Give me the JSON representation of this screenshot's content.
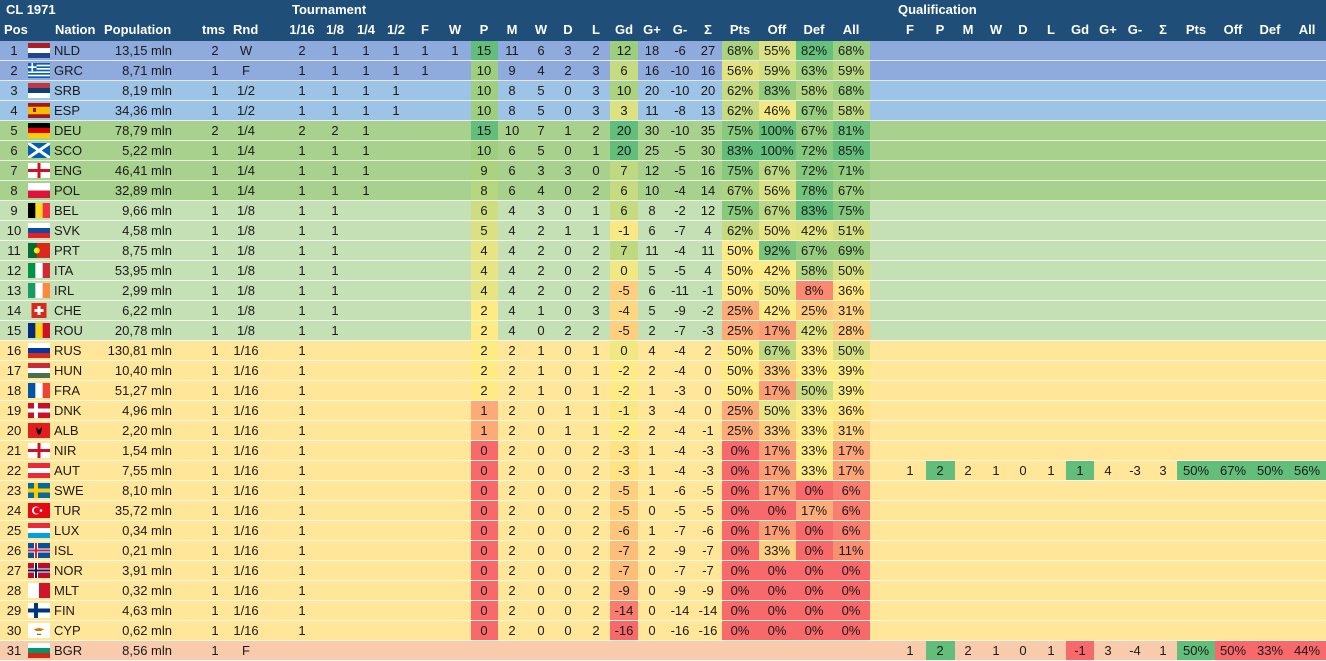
{
  "title": "CL 1971",
  "groups": {
    "tournament": "Tournament",
    "qualification": "Qualification"
  },
  "headers": {
    "pos": "Pos",
    "nation": "Nation",
    "population": "Population",
    "tms": "tms",
    "rnd": "Rnd",
    "rounds": [
      "1/16",
      "1/8",
      "1/4",
      "1/2",
      "F",
      "W"
    ],
    "stats": [
      "P",
      "M",
      "W",
      "D",
      "L",
      "Gd",
      "G+",
      "G-",
      "Σ",
      "Pts",
      "Off",
      "Def",
      "All"
    ],
    "qual": [
      "F",
      "P",
      "M",
      "W",
      "D",
      "L",
      "Gd",
      "G+",
      "G-",
      "Σ",
      "Pts",
      "Off",
      "Def",
      "All"
    ]
  },
  "colors": {
    "header": "#1f4e79",
    "tier_winner_final": "#8faadc",
    "tier_semi": "#9dc3e6",
    "tier_quarter": "#a9d18e",
    "tier_eighth": "#c5e0b4",
    "tier_sixteenth": "#ffe699",
    "tier_qualification": "#f8cbad",
    "scale_low": "#f8696b",
    "scale_mid": "#ffeb84",
    "scale_high": "#63be7b"
  },
  "rows": [
    {
      "pos": "1",
      "nation": "NLD",
      "population": "13,15 mln",
      "tms": "2",
      "rnd": "W",
      "tier": "tier_winner_final",
      "t": [
        "2",
        "1",
        "1",
        "1",
        "1",
        "1"
      ],
      "s": [
        "15",
        "11",
        "6",
        "3",
        "2",
        "12",
        "18",
        "-6",
        "27",
        "68%",
        "55%",
        "82%",
        "68%"
      ]
    },
    {
      "pos": "2",
      "nation": "GRC",
      "population": "8,71 mln",
      "tms": "1",
      "rnd": "F",
      "tier": "tier_winner_final",
      "t": [
        "1",
        "1",
        "1",
        "1",
        "1",
        ""
      ],
      "s": [
        "10",
        "9",
        "4",
        "2",
        "3",
        "6",
        "16",
        "-10",
        "16",
        "56%",
        "59%",
        "63%",
        "59%"
      ]
    },
    {
      "pos": "3",
      "nation": "SRB",
      "population": "8,19 mln",
      "tms": "1",
      "rnd": "1/2",
      "tier": "tier_semi",
      "t": [
        "1",
        "1",
        "1",
        "1",
        "",
        ""
      ],
      "s": [
        "10",
        "8",
        "5",
        "0",
        "3",
        "10",
        "20",
        "-10",
        "20",
        "62%",
        "83%",
        "58%",
        "68%"
      ]
    },
    {
      "pos": "4",
      "nation": "ESP",
      "population": "34,36 mln",
      "tms": "1",
      "rnd": "1/2",
      "tier": "tier_semi",
      "t": [
        "1",
        "1",
        "1",
        "1",
        "",
        ""
      ],
      "s": [
        "10",
        "8",
        "5",
        "0",
        "3",
        "3",
        "11",
        "-8",
        "13",
        "62%",
        "46%",
        "67%",
        "58%"
      ]
    },
    {
      "pos": "5",
      "nation": "DEU",
      "population": "78,79 mln",
      "tms": "2",
      "rnd": "1/4",
      "tier": "tier_quarter",
      "t": [
        "2",
        "2",
        "1",
        "",
        "",
        ""
      ],
      "s": [
        "15",
        "10",
        "7",
        "1",
        "2",
        "20",
        "30",
        "-10",
        "35",
        "75%",
        "100%",
        "67%",
        "81%"
      ]
    },
    {
      "pos": "6",
      "nation": "SCO",
      "population": "5,22 mln",
      "tms": "1",
      "rnd": "1/4",
      "tier": "tier_quarter",
      "t": [
        "1",
        "1",
        "1",
        "",
        "",
        ""
      ],
      "s": [
        "10",
        "6",
        "5",
        "0",
        "1",
        "20",
        "25",
        "-5",
        "30",
        "83%",
        "100%",
        "72%",
        "85%"
      ]
    },
    {
      "pos": "7",
      "nation": "ENG",
      "population": "46,41 mln",
      "tms": "1",
      "rnd": "1/4",
      "tier": "tier_quarter",
      "t": [
        "1",
        "1",
        "1",
        "",
        "",
        ""
      ],
      "s": [
        "9",
        "6",
        "3",
        "3",
        "0",
        "7",
        "12",
        "-5",
        "16",
        "75%",
        "67%",
        "72%",
        "71%"
      ]
    },
    {
      "pos": "8",
      "nation": "POL",
      "population": "32,89 mln",
      "tms": "1",
      "rnd": "1/4",
      "tier": "tier_quarter",
      "t": [
        "1",
        "1",
        "1",
        "",
        "",
        ""
      ],
      "s": [
        "8",
        "6",
        "4",
        "0",
        "2",
        "6",
        "10",
        "-4",
        "14",
        "67%",
        "56%",
        "78%",
        "67%"
      ]
    },
    {
      "pos": "9",
      "nation": "BEL",
      "population": "9,66 mln",
      "tms": "1",
      "rnd": "1/8",
      "tier": "tier_eighth",
      "t": [
        "1",
        "1",
        "",
        "",
        "",
        ""
      ],
      "s": [
        "6",
        "4",
        "3",
        "0",
        "1",
        "6",
        "8",
        "-2",
        "12",
        "75%",
        "67%",
        "83%",
        "75%"
      ]
    },
    {
      "pos": "10",
      "nation": "SVK",
      "population": "4,58 mln",
      "tms": "1",
      "rnd": "1/8",
      "tier": "tier_eighth",
      "t": [
        "1",
        "1",
        "",
        "",
        "",
        ""
      ],
      "s": [
        "5",
        "4",
        "2",
        "1",
        "1",
        "-1",
        "6",
        "-7",
        "4",
        "62%",
        "50%",
        "42%",
        "51%"
      ]
    },
    {
      "pos": "11",
      "nation": "PRT",
      "population": "8,75 mln",
      "tms": "1",
      "rnd": "1/8",
      "tier": "tier_eighth",
      "t": [
        "1",
        "1",
        "",
        "",
        "",
        ""
      ],
      "s": [
        "4",
        "4",
        "2",
        "0",
        "2",
        "7",
        "11",
        "-4",
        "11",
        "50%",
        "92%",
        "67%",
        "69%"
      ]
    },
    {
      "pos": "12",
      "nation": "ITA",
      "population": "53,95 mln",
      "tms": "1",
      "rnd": "1/8",
      "tier": "tier_eighth",
      "t": [
        "1",
        "1",
        "",
        "",
        "",
        ""
      ],
      "s": [
        "4",
        "4",
        "2",
        "0",
        "2",
        "0",
        "5",
        "-5",
        "4",
        "50%",
        "42%",
        "58%",
        "50%"
      ]
    },
    {
      "pos": "13",
      "nation": "IRL",
      "population": "2,99 mln",
      "tms": "1",
      "rnd": "1/8",
      "tier": "tier_eighth",
      "t": [
        "1",
        "1",
        "",
        "",
        "",
        ""
      ],
      "s": [
        "4",
        "4",
        "2",
        "0",
        "2",
        "-5",
        "6",
        "-11",
        "-1",
        "50%",
        "50%",
        "8%",
        "36%"
      ]
    },
    {
      "pos": "14",
      "nation": "CHE",
      "population": "6,22 mln",
      "tms": "1",
      "rnd": "1/8",
      "tier": "tier_eighth",
      "t": [
        "1",
        "1",
        "",
        "",
        "",
        ""
      ],
      "s": [
        "2",
        "4",
        "1",
        "0",
        "3",
        "-4",
        "5",
        "-9",
        "-2",
        "25%",
        "42%",
        "25%",
        "31%"
      ]
    },
    {
      "pos": "15",
      "nation": "ROU",
      "population": "20,78 mln",
      "tms": "1",
      "rnd": "1/8",
      "tier": "tier_eighth",
      "t": [
        "1",
        "1",
        "",
        "",
        "",
        ""
      ],
      "s": [
        "2",
        "4",
        "0",
        "2",
        "2",
        "-5",
        "2",
        "-7",
        "-3",
        "25%",
        "17%",
        "42%",
        "28%"
      ]
    },
    {
      "pos": "16",
      "nation": "RUS",
      "population": "130,81 mln",
      "tms": "1",
      "rnd": "1/16",
      "tier": "tier_sixteenth",
      "t": [
        "1",
        "",
        "",
        "",
        "",
        ""
      ],
      "s": [
        "2",
        "2",
        "1",
        "0",
        "1",
        "0",
        "4",
        "-4",
        "2",
        "50%",
        "67%",
        "33%",
        "50%"
      ]
    },
    {
      "pos": "17",
      "nation": "HUN",
      "population": "10,40 mln",
      "tms": "1",
      "rnd": "1/16",
      "tier": "tier_sixteenth",
      "t": [
        "1",
        "",
        "",
        "",
        "",
        ""
      ],
      "s": [
        "2",
        "2",
        "1",
        "0",
        "1",
        "-2",
        "2",
        "-4",
        "0",
        "50%",
        "33%",
        "33%",
        "39%"
      ]
    },
    {
      "pos": "18",
      "nation": "FRA",
      "population": "51,27 mln",
      "tms": "1",
      "rnd": "1/16",
      "tier": "tier_sixteenth",
      "t": [
        "1",
        "",
        "",
        "",
        "",
        ""
      ],
      "s": [
        "2",
        "2",
        "1",
        "0",
        "1",
        "-2",
        "1",
        "-3",
        "0",
        "50%",
        "17%",
        "50%",
        "39%"
      ]
    },
    {
      "pos": "19",
      "nation": "DNK",
      "population": "4,96 mln",
      "tms": "1",
      "rnd": "1/16",
      "tier": "tier_sixteenth",
      "t": [
        "1",
        "",
        "",
        "",
        "",
        ""
      ],
      "s": [
        "1",
        "2",
        "0",
        "1",
        "1",
        "-1",
        "3",
        "-4",
        "0",
        "25%",
        "50%",
        "33%",
        "36%"
      ]
    },
    {
      "pos": "20",
      "nation": "ALB",
      "population": "2,20 mln",
      "tms": "1",
      "rnd": "1/16",
      "tier": "tier_sixteenth",
      "t": [
        "1",
        "",
        "",
        "",
        "",
        ""
      ],
      "s": [
        "1",
        "2",
        "0",
        "1",
        "1",
        "-2",
        "2",
        "-4",
        "-1",
        "25%",
        "33%",
        "33%",
        "31%"
      ]
    },
    {
      "pos": "21",
      "nation": "NIR",
      "population": "1,54 mln",
      "tms": "1",
      "rnd": "1/16",
      "tier": "tier_sixteenth",
      "t": [
        "1",
        "",
        "",
        "",
        "",
        ""
      ],
      "s": [
        "0",
        "2",
        "0",
        "0",
        "2",
        "-3",
        "1",
        "-4",
        "-3",
        "0%",
        "17%",
        "33%",
        "17%"
      ]
    },
    {
      "pos": "22",
      "nation": "AUT",
      "population": "7,55 mln",
      "tms": "1",
      "rnd": "1/16",
      "tier": "tier_sixteenth",
      "t": [
        "1",
        "",
        "",
        "",
        "",
        ""
      ],
      "s": [
        "0",
        "2",
        "0",
        "0",
        "2",
        "-3",
        "1",
        "-4",
        "-3",
        "0%",
        "17%",
        "33%",
        "17%"
      ],
      "q": [
        "1",
        "2",
        "2",
        "1",
        "0",
        "1",
        "1",
        "4",
        "-3",
        "3",
        "50%",
        "67%",
        "50%",
        "56%"
      ]
    },
    {
      "pos": "23",
      "nation": "SWE",
      "population": "8,10 mln",
      "tms": "1",
      "rnd": "1/16",
      "tier": "tier_sixteenth",
      "t": [
        "1",
        "",
        "",
        "",
        "",
        ""
      ],
      "s": [
        "0",
        "2",
        "0",
        "0",
        "2",
        "-5",
        "1",
        "-6",
        "-5",
        "0%",
        "17%",
        "0%",
        "6%"
      ]
    },
    {
      "pos": "24",
      "nation": "TUR",
      "population": "35,72 mln",
      "tms": "1",
      "rnd": "1/16",
      "tier": "tier_sixteenth",
      "t": [
        "1",
        "",
        "",
        "",
        "",
        ""
      ],
      "s": [
        "0",
        "2",
        "0",
        "0",
        "2",
        "-5",
        "0",
        "-5",
        "-5",
        "0%",
        "0%",
        "17%",
        "6%"
      ]
    },
    {
      "pos": "25",
      "nation": "LUX",
      "population": "0,34 mln",
      "tms": "1",
      "rnd": "1/16",
      "tier": "tier_sixteenth",
      "t": [
        "1",
        "",
        "",
        "",
        "",
        ""
      ],
      "s": [
        "0",
        "2",
        "0",
        "0",
        "2",
        "-6",
        "1",
        "-7",
        "-6",
        "0%",
        "17%",
        "0%",
        "6%"
      ]
    },
    {
      "pos": "26",
      "nation": "ISL",
      "population": "0,21 mln",
      "tms": "1",
      "rnd": "1/16",
      "tier": "tier_sixteenth",
      "t": [
        "1",
        "",
        "",
        "",
        "",
        ""
      ],
      "s": [
        "0",
        "2",
        "0",
        "0",
        "2",
        "-7",
        "2",
        "-9",
        "-7",
        "0%",
        "33%",
        "0%",
        "11%"
      ]
    },
    {
      "pos": "27",
      "nation": "NOR",
      "population": "3,91 mln",
      "tms": "1",
      "rnd": "1/16",
      "tier": "tier_sixteenth",
      "t": [
        "1",
        "",
        "",
        "",
        "",
        ""
      ],
      "s": [
        "0",
        "2",
        "0",
        "0",
        "2",
        "-7",
        "0",
        "-7",
        "-7",
        "0%",
        "0%",
        "0%",
        "0%"
      ]
    },
    {
      "pos": "28",
      "nation": "MLT",
      "population": "0,32 mln",
      "tms": "1",
      "rnd": "1/16",
      "tier": "tier_sixteenth",
      "t": [
        "1",
        "",
        "",
        "",
        "",
        ""
      ],
      "s": [
        "0",
        "2",
        "0",
        "0",
        "2",
        "-9",
        "0",
        "-9",
        "-9",
        "0%",
        "0%",
        "0%",
        "0%"
      ]
    },
    {
      "pos": "29",
      "nation": "FIN",
      "population": "4,63 mln",
      "tms": "1",
      "rnd": "1/16",
      "tier": "tier_sixteenth",
      "t": [
        "1",
        "",
        "",
        "",
        "",
        ""
      ],
      "s": [
        "0",
        "2",
        "0",
        "0",
        "2",
        "-14",
        "0",
        "-14",
        "-14",
        "0%",
        "0%",
        "0%",
        "0%"
      ]
    },
    {
      "pos": "30",
      "nation": "CYP",
      "population": "0,62 mln",
      "tms": "1",
      "rnd": "1/16",
      "tier": "tier_sixteenth",
      "t": [
        "1",
        "",
        "",
        "",
        "",
        ""
      ],
      "s": [
        "0",
        "2",
        "0",
        "0",
        "2",
        "-16",
        "0",
        "-16",
        "-16",
        "0%",
        "0%",
        "0%",
        "0%"
      ]
    },
    {
      "pos": "31",
      "nation": "BGR",
      "population": "8,56 mln",
      "tms": "1",
      "rnd": "F",
      "tier": "tier_qualification",
      "t": [
        "",
        "",
        "",
        "",
        "",
        ""
      ],
      "s": [
        "",
        "",
        "",
        "",
        "",
        "",
        "",
        "",
        "",
        "",
        "",
        "",
        ""
      ],
      "q": [
        "1",
        "2",
        "2",
        "1",
        "0",
        "1",
        "-1",
        "3",
        "-4",
        "1",
        "50%",
        "50%",
        "33%",
        "44%"
      ]
    }
  ]
}
